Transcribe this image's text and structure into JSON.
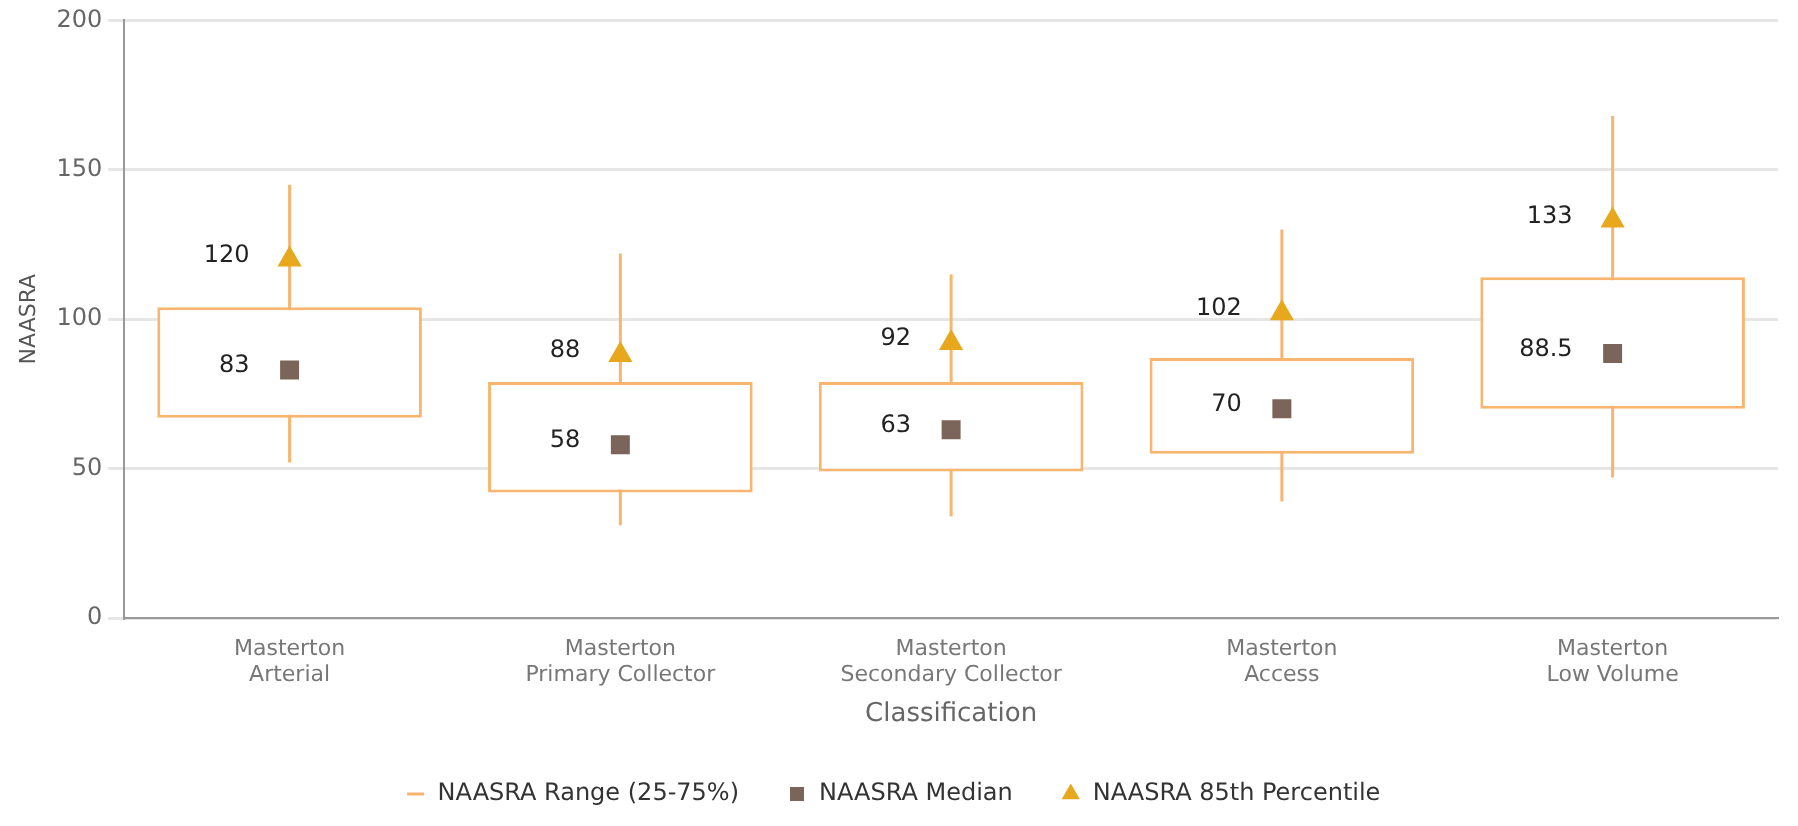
{
  "chart_data": {
    "type": "box",
    "xlabel": "Classification",
    "ylabel": "NAASRA",
    "categories": [
      "Masterton\nArterial",
      "Masterton\nPrimary Collector",
      "Masterton\nSecondary Collector",
      "Masterton\nAccess",
      "Masterton\nLow Volume"
    ],
    "ylim": [
      0,
      200
    ],
    "yticks": [
      0,
      50,
      100,
      150,
      200
    ],
    "grid": "y",
    "legend": "bottom",
    "series": [
      {
        "name": "NAASRA Range (25-75%)",
        "color": "#f7b56f",
        "boxes": [
          {
            "low": 52,
            "q1": 67,
            "q3": 104,
            "high": 145
          },
          {
            "low": 31,
            "q1": 42,
            "q3": 79,
            "high": 122
          },
          {
            "low": 34,
            "q1": 49,
            "q3": 79,
            "high": 115
          },
          {
            "low": 39,
            "q1": 55,
            "q3": 87,
            "high": 130
          },
          {
            "low": 47,
            "q1": 70,
            "q3": 114,
            "high": 168
          }
        ]
      },
      {
        "name": "NAASRA Median",
        "type": "scatter",
        "marker": "square",
        "color": "#7b6459",
        "values": [
          83,
          58,
          63,
          70,
          88.5
        ],
        "data_labels": true
      },
      {
        "name": "NAASRA 85th Percentile",
        "type": "scatter",
        "marker": "triangle",
        "color": "#e8a81e",
        "values": [
          120,
          88,
          92,
          102,
          133
        ],
        "data_labels": true
      }
    ]
  }
}
